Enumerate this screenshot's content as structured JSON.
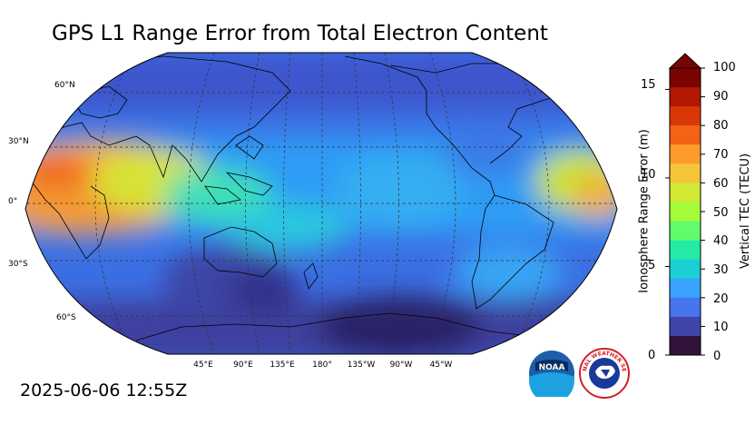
{
  "title": "GPS L1 Range Error from Total Electron Content",
  "timestamp": "2025-06-06 12:55Z",
  "map": {
    "projection": "robinson",
    "central_meridian": "180°",
    "lat_labels": [
      "60°N",
      "30°N",
      "0°",
      "30°S",
      "60°S"
    ],
    "lon_labels": [
      "45°E",
      "90°E",
      "135°E",
      "180°",
      "135°W",
      "90°W",
      "45°W"
    ]
  },
  "colorbar": {
    "left_axis_title": "Ionosphere Range Error (m)",
    "right_axis_title": "Vertical TEC (TECU)",
    "left_ticks": [
      "15",
      "10",
      "5",
      "0"
    ],
    "right_ticks": [
      "100",
      "90",
      "80",
      "70",
      "60",
      "50",
      "40",
      "30",
      "20",
      "10",
      "0"
    ],
    "colors": [
      "#30123b",
      "#4145ab",
      "#4675ed",
      "#39a2fc",
      "#1bcfd4",
      "#24eca6",
      "#61fc6c",
      "#a4fc3b",
      "#d1e834",
      "#f3c63a",
      "#fe9b2d",
      "#f36315",
      "#d93806",
      "#b11901",
      "#7a0402"
    ]
  },
  "logos": {
    "noaa": "NOAA",
    "nws": "NATIONAL WEATHER SERVICE"
  }
}
